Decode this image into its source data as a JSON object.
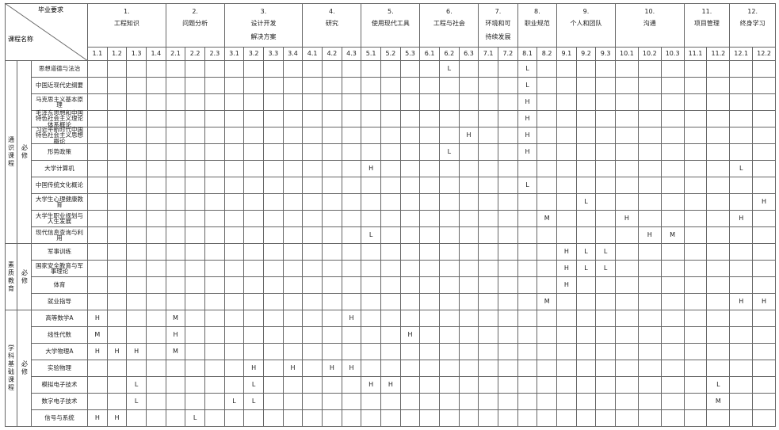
{
  "table": {
    "corner": {
      "top": "毕业要求",
      "bottom": "课程名称"
    },
    "groups": [
      {
        "number": "1.",
        "name": "工程知识",
        "subs": [
          "1.1",
          "1.2",
          "1.3",
          "1.4"
        ]
      },
      {
        "number": "2.",
        "name": "问题分析",
        "subs": [
          "2.1",
          "2.2",
          "2.3"
        ]
      },
      {
        "number": "3.",
        "name": "设计开发\n解决方案",
        "subs": [
          "3.1",
          "3.2",
          "3.3",
          "3.4"
        ]
      },
      {
        "number": "4.",
        "name": "研究",
        "subs": [
          "4.1",
          "4.2",
          "4.3"
        ]
      },
      {
        "number": "5.",
        "name": "使用现代工具",
        "subs": [
          "5.1",
          "5.2",
          "5.3"
        ]
      },
      {
        "number": "6.",
        "name": "工程与社会",
        "subs": [
          "6.1",
          "6.2",
          "6.3"
        ]
      },
      {
        "number": "7.",
        "name": "环境和可\n持续发展",
        "subs": [
          "7.1",
          "7.2"
        ]
      },
      {
        "number": "8.",
        "name": "职业规范",
        "subs": [
          "8.1",
          "8.2"
        ]
      },
      {
        "number": "9.",
        "name": "个人和团队",
        "subs": [
          "9.1",
          "9.2",
          "9.3"
        ]
      },
      {
        "number": "10.",
        "name": "沟通",
        "subs": [
          "10.1",
          "10.2",
          "10.3"
        ]
      },
      {
        "number": "11.",
        "name": "项目管理",
        "subs": [
          "11.1",
          "11.2"
        ]
      },
      {
        "number": "12.",
        "name": "终身学习",
        "subs": [
          "12.1",
          "12.2"
        ]
      }
    ],
    "sections": [
      {
        "name": "通识课程",
        "kind": "必修",
        "rows": [
          {
            "course": "思想道德与法治",
            "cells": [
              null,
              null,
              null,
              null,
              null,
              null,
              null,
              null,
              null,
              null,
              null,
              null,
              null,
              null,
              null,
              null,
              null,
              null,
              "L",
              null,
              null,
              null,
              "L",
              null,
              null,
              null,
              null,
              null,
              null,
              null,
              null,
              null,
              null,
              null
            ]
          },
          {
            "course": "中国近现代史纲要",
            "cells": [
              null,
              null,
              null,
              null,
              null,
              null,
              null,
              null,
              null,
              null,
              null,
              null,
              null,
              null,
              null,
              null,
              null,
              null,
              null,
              null,
              null,
              null,
              "L",
              null,
              null,
              null,
              null,
              null,
              null,
              null,
              null,
              null,
              null,
              null
            ]
          },
          {
            "course": "马克思主义基本原理",
            "cells": [
              null,
              null,
              null,
              null,
              null,
              null,
              null,
              null,
              null,
              null,
              null,
              null,
              null,
              null,
              null,
              null,
              null,
              null,
              null,
              null,
              null,
              null,
              "H",
              null,
              null,
              null,
              null,
              null,
              null,
              null,
              null,
              null,
              null,
              null
            ]
          },
          {
            "course": "毛泽东思想和中国特色社会主义理论体系概论",
            "cells": [
              null,
              null,
              null,
              null,
              null,
              null,
              null,
              null,
              null,
              null,
              null,
              null,
              null,
              null,
              null,
              null,
              null,
              null,
              null,
              null,
              null,
              null,
              "H",
              null,
              null,
              null,
              null,
              null,
              null,
              null,
              null,
              null,
              null,
              null
            ]
          },
          {
            "course": "习近平新时代中国特色社会主义思想概论",
            "cells": [
              null,
              null,
              null,
              null,
              null,
              null,
              null,
              null,
              null,
              null,
              null,
              null,
              null,
              null,
              null,
              null,
              null,
              null,
              null,
              "H",
              null,
              null,
              "H",
              null,
              null,
              null,
              null,
              null,
              null,
              null,
              null,
              null,
              null,
              null
            ]
          },
          {
            "course": "形势政策",
            "cells": [
              null,
              null,
              null,
              null,
              null,
              null,
              null,
              null,
              null,
              null,
              null,
              null,
              null,
              null,
              null,
              null,
              null,
              null,
              "L",
              null,
              null,
              null,
              "H",
              null,
              null,
              null,
              null,
              null,
              null,
              null,
              null,
              null,
              null,
              null
            ]
          },
          {
            "course": "大学计算机",
            "cells": [
              null,
              null,
              null,
              null,
              null,
              null,
              null,
              null,
              null,
              null,
              null,
              null,
              null,
              null,
              "H",
              null,
              null,
              null,
              null,
              null,
              null,
              null,
              null,
              null,
              null,
              null,
              null,
              null,
              null,
              null,
              null,
              null,
              "L",
              null
            ]
          },
          {
            "course": "中国传统文化概论",
            "cells": [
              null,
              null,
              null,
              null,
              null,
              null,
              null,
              null,
              null,
              null,
              null,
              null,
              null,
              null,
              null,
              null,
              null,
              null,
              null,
              null,
              null,
              null,
              "L",
              null,
              null,
              null,
              null,
              null,
              null,
              null,
              null,
              null,
              null,
              null
            ]
          },
          {
            "course": "大学生心理健康教育",
            "cells": [
              null,
              null,
              null,
              null,
              null,
              null,
              null,
              null,
              null,
              null,
              null,
              null,
              null,
              null,
              null,
              null,
              null,
              null,
              null,
              null,
              null,
              null,
              null,
              null,
              null,
              "L",
              null,
              null,
              null,
              null,
              null,
              null,
              null,
              "H"
            ]
          },
          {
            "course": "大学生职业规划与人生发展",
            "cells": [
              null,
              null,
              null,
              null,
              null,
              null,
              null,
              null,
              null,
              null,
              null,
              null,
              null,
              null,
              null,
              null,
              null,
              null,
              null,
              null,
              null,
              null,
              null,
              "M",
              null,
              null,
              null,
              "H",
              null,
              null,
              null,
              null,
              "H",
              null
            ]
          },
          {
            "course": "现代信息查询与利用",
            "cells": [
              null,
              null,
              null,
              null,
              null,
              null,
              null,
              null,
              null,
              null,
              null,
              null,
              null,
              null,
              "L",
              null,
              null,
              null,
              null,
              null,
              null,
              null,
              null,
              null,
              null,
              null,
              null,
              null,
              "H",
              "M",
              null,
              null,
              null,
              null
            ]
          }
        ]
      },
      {
        "name": "素质教育",
        "kind": "必修",
        "rows": [
          {
            "course": "军事训练",
            "cells": [
              null,
              null,
              null,
              null,
              null,
              null,
              null,
              null,
              null,
              null,
              null,
              null,
              null,
              null,
              null,
              null,
              null,
              null,
              null,
              null,
              null,
              null,
              null,
              null,
              "H",
              "L",
              "L",
              null,
              null,
              null,
              null,
              null,
              null,
              null
            ]
          },
          {
            "course": "国家安全教育与军事理论",
            "cells": [
              null,
              null,
              null,
              null,
              null,
              null,
              null,
              null,
              null,
              null,
              null,
              null,
              null,
              null,
              null,
              null,
              null,
              null,
              null,
              null,
              null,
              null,
              null,
              null,
              "H",
              "L",
              "L",
              null,
              null,
              null,
              null,
              null,
              null,
              null
            ]
          },
          {
            "course": "体育",
            "cells": [
              null,
              null,
              null,
              null,
              null,
              null,
              null,
              null,
              null,
              null,
              null,
              null,
              null,
              null,
              null,
              null,
              null,
              null,
              null,
              null,
              null,
              null,
              null,
              null,
              "H",
              null,
              null,
              null,
              null,
              null,
              null,
              null,
              null,
              null
            ]
          },
          {
            "course": "就业指导",
            "cells": [
              null,
              null,
              null,
              null,
              null,
              null,
              null,
              null,
              null,
              null,
              null,
              null,
              null,
              null,
              null,
              null,
              null,
              null,
              null,
              null,
              null,
              null,
              null,
              "M",
              null,
              null,
              null,
              null,
              null,
              null,
              null,
              null,
              "H",
              "H"
            ]
          }
        ]
      },
      {
        "name": "学科基础课程",
        "kind": "必修",
        "rows": [
          {
            "course": "高等数学A",
            "cells": [
              "H",
              null,
              null,
              null,
              "M",
              null,
              null,
              null,
              null,
              null,
              null,
              null,
              null,
              "H",
              null,
              null,
              null,
              null,
              null,
              null,
              null,
              null,
              null,
              null,
              null,
              null,
              null,
              null,
              null,
              null,
              null,
              null,
              null,
              null
            ]
          },
          {
            "course": "线性代数",
            "cells": [
              "M",
              null,
              null,
              null,
              "H",
              null,
              null,
              null,
              null,
              null,
              null,
              null,
              null,
              null,
              null,
              null,
              "H",
              null,
              null,
              null,
              null,
              null,
              null,
              null,
              null,
              null,
              null,
              null,
              null,
              null,
              null,
              null,
              null,
              null
            ]
          },
          {
            "course": "大学物理A",
            "cells": [
              "H",
              "H",
              "H",
              null,
              "M",
              null,
              null,
              null,
              null,
              null,
              null,
              null,
              null,
              null,
              null,
              null,
              null,
              null,
              null,
              null,
              null,
              null,
              null,
              null,
              null,
              null,
              null,
              null,
              null,
              null,
              null,
              null,
              null,
              null
            ]
          },
          {
            "course": "实验物理",
            "cells": [
              null,
              null,
              null,
              null,
              null,
              null,
              null,
              null,
              "H",
              null,
              "H",
              null,
              "H",
              "H",
              null,
              null,
              null,
              null,
              null,
              null,
              null,
              null,
              null,
              null,
              null,
              null,
              null,
              null,
              null,
              null,
              null,
              null,
              null,
              null
            ]
          },
          {
            "course": "模拟电子技术",
            "cells": [
              null,
              null,
              "L",
              null,
              null,
              null,
              null,
              null,
              "L",
              null,
              null,
              null,
              null,
              null,
              "H",
              "H",
              null,
              null,
              null,
              null,
              null,
              null,
              null,
              null,
              null,
              null,
              null,
              null,
              null,
              null,
              null,
              "L",
              null,
              null
            ]
          },
          {
            "course": "数字电子技术",
            "cells": [
              null,
              null,
              "L",
              null,
              null,
              null,
              null,
              "L",
              "L",
              null,
              null,
              null,
              null,
              null,
              null,
              null,
              null,
              null,
              null,
              null,
              null,
              null,
              null,
              null,
              null,
              null,
              null,
              null,
              null,
              null,
              null,
              "M",
              null,
              null
            ]
          },
          {
            "course": "信号与系统",
            "cells": [
              "H",
              "H",
              null,
              null,
              null,
              "L",
              null,
              null,
              null,
              null,
              null,
              null,
              null,
              null,
              null,
              null,
              null,
              null,
              null,
              null,
              null,
              null,
              null,
              null,
              null,
              null,
              null,
              null,
              null,
              null,
              null,
              null,
              null,
              null
            ]
          }
        ]
      }
    ]
  }
}
